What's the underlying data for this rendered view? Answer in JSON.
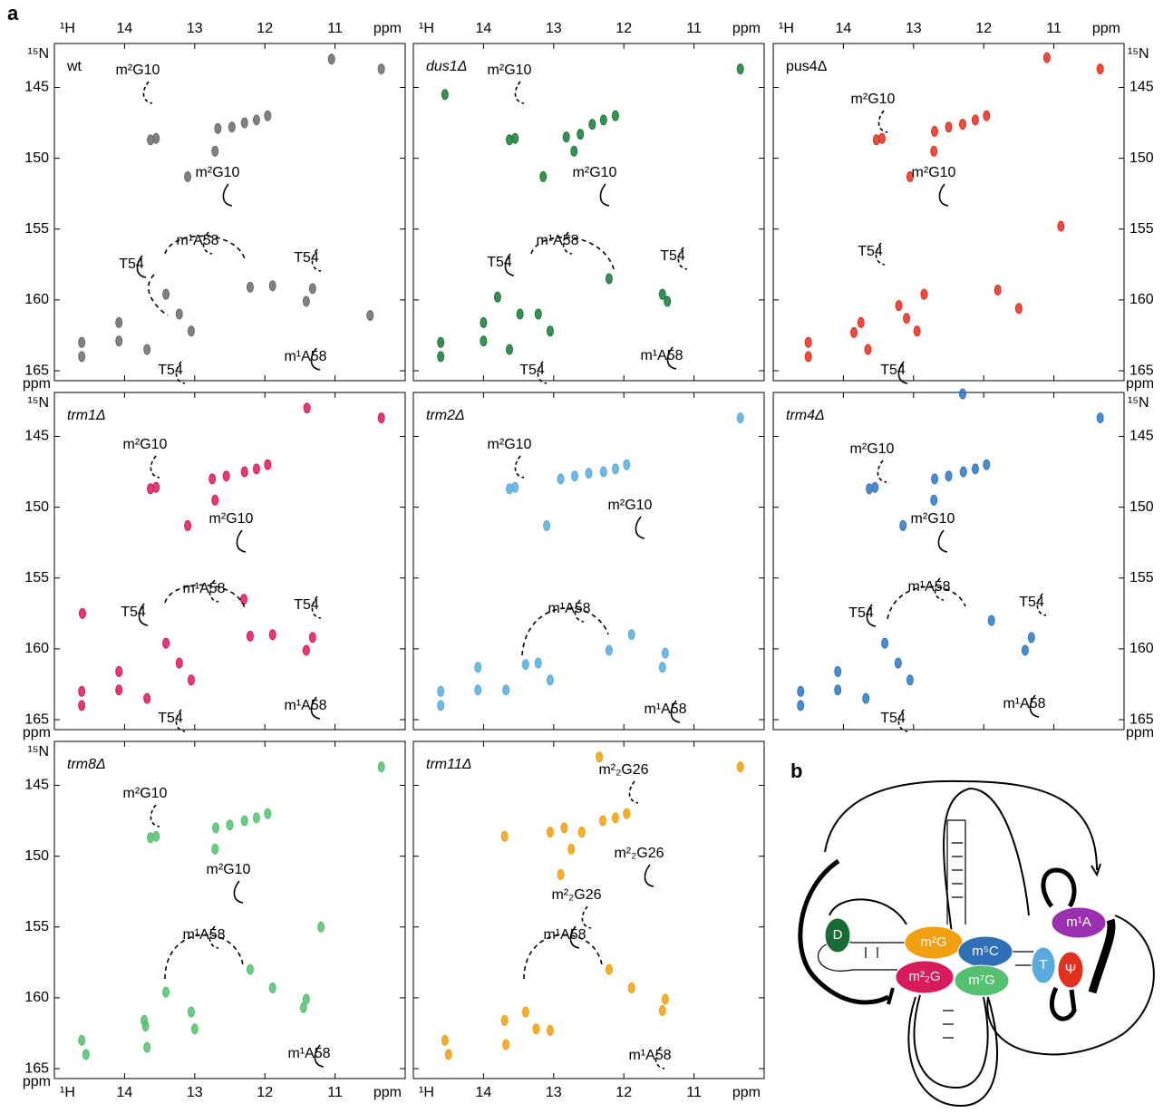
{
  "figure_labels": {
    "a": "a",
    "b": "b"
  },
  "spectra": {
    "type": "scatter",
    "x_label": "¹H",
    "y_label": "¹⁵N",
    "unit": "ppm",
    "xlim": [
      15.0,
      10.0
    ],
    "xticks": [
      14,
      13,
      12,
      11
    ],
    "ylim": [
      141.9,
      165.7
    ],
    "yticks": [
      145,
      150,
      155,
      160,
      165
    ],
    "panels": [
      {
        "name": "wt",
        "italic": false,
        "color": "#6b6b6b",
        "annotations": [
          "m²G10",
          "m²G10",
          "m¹A58",
          "T54",
          "T54",
          "m¹A58",
          "T54"
        ],
        "x": [
          10.34,
          11.05,
          13.55,
          13.63,
          12.67,
          12.47,
          12.29,
          12.12,
          11.96,
          12.71,
          13.1,
          12.21,
          11.89,
          13.41,
          11.41,
          11.32,
          14.08,
          13.22,
          13.05,
          14.08,
          14.61,
          14.61,
          13.68,
          10.5
        ],
        "y": [
          143.7,
          143.0,
          148.6,
          148.7,
          147.9,
          147.8,
          147.5,
          147.3,
          147.0,
          149.5,
          151.3,
          159.1,
          159.0,
          159.6,
          160.1,
          159.2,
          161.6,
          161.0,
          162.2,
          162.9,
          163.0,
          164.0,
          163.5,
          161.1
        ]
      },
      {
        "name": "dus1Δ",
        "italic": true,
        "color": "#1a7a3a",
        "annotations": [
          "m²G10",
          "m²G10",
          "m¹A58",
          "T54",
          "T54",
          "m¹A58",
          "T54"
        ],
        "x": [
          10.34,
          14.55,
          13.55,
          13.63,
          12.82,
          12.62,
          12.45,
          12.29,
          12.12,
          12.71,
          13.15,
          12.21,
          11.45,
          13.48,
          11.38,
          13.8,
          14.0,
          13.22,
          13.05,
          14.0,
          14.61,
          14.61,
          13.63
        ],
        "y": [
          143.7,
          145.5,
          148.6,
          148.7,
          148.5,
          148.3,
          147.6,
          147.3,
          147.0,
          149.5,
          151.3,
          158.5,
          159.6,
          161.0,
          160.1,
          159.8,
          161.6,
          161.0,
          162.2,
          162.9,
          163.0,
          164.0,
          163.5
        ]
      },
      {
        "name": "pus4Δ",
        "italic": false,
        "color": "#e03020",
        "annotations": [
          "m²G10",
          "m²G10",
          "T54",
          "T54"
        ],
        "x": [
          10.34,
          11.1,
          13.45,
          13.53,
          12.7,
          12.5,
          12.3,
          12.12,
          11.96,
          12.71,
          13.05,
          12.85,
          11.8,
          13.21,
          11.5,
          13.75,
          13.1,
          12.95,
          13.85,
          14.5,
          14.5,
          13.65,
          10.9
        ],
        "y": [
          143.7,
          142.9,
          148.6,
          148.7,
          148.1,
          147.8,
          147.6,
          147.3,
          147.0,
          149.5,
          151.3,
          159.6,
          159.3,
          160.4,
          160.6,
          161.6,
          161.3,
          162.2,
          162.3,
          163.0,
          164.0,
          163.5,
          154.8
        ]
      },
      {
        "name": "trm1Δ",
        "italic": true,
        "color": "#d81b5a",
        "annotations": [
          "m²G10",
          "m²G10",
          "m¹A58",
          "T54",
          "T54",
          "m¹A58",
          "T54"
        ],
        "x": [
          10.34,
          11.4,
          13.55,
          13.63,
          12.75,
          12.55,
          12.29,
          12.12,
          11.96,
          12.71,
          13.1,
          12.21,
          11.89,
          13.41,
          11.41,
          11.32,
          14.08,
          13.22,
          13.05,
          14.08,
          14.61,
          14.61,
          13.68,
          14.6,
          12.3
        ],
        "y": [
          143.7,
          143.0,
          148.6,
          148.7,
          148.0,
          147.8,
          147.5,
          147.3,
          147.0,
          149.5,
          151.3,
          159.1,
          159.0,
          159.6,
          160.1,
          159.2,
          161.6,
          161.0,
          162.2,
          162.9,
          163.0,
          164.0,
          163.5,
          157.5,
          156.5
        ]
      },
      {
        "name": "trm2Δ",
        "italic": true,
        "color": "#5aabdc",
        "annotations": [
          "m²G10",
          "m²G10",
          "m¹A58",
          "m¹A58"
        ],
        "x": [
          10.34,
          13.55,
          13.63,
          12.9,
          12.7,
          12.5,
          12.29,
          12.12,
          11.96,
          13.1,
          12.21,
          11.89,
          11.41,
          11.45,
          14.08,
          13.4,
          13.22,
          13.05,
          14.08,
          14.61,
          14.61,
          13.68
        ],
        "y": [
          143.7,
          148.6,
          148.7,
          148.0,
          147.8,
          147.6,
          147.5,
          147.3,
          147.0,
          151.3,
          160.1,
          159.0,
          160.3,
          161.3,
          161.3,
          161.1,
          161.0,
          162.2,
          162.9,
          163.0,
          164.0,
          162.9
        ]
      },
      {
        "name": "trm4Δ",
        "italic": true,
        "color": "#2f78c0",
        "annotations": [
          "m²G10",
          "m²G10",
          "m¹A58",
          "T54",
          "T54",
          "m¹A58",
          "T54"
        ],
        "x": [
          10.34,
          13.55,
          13.63,
          12.7,
          12.5,
          12.29,
          12.12,
          11.96,
          12.71,
          13.15,
          11.89,
          11.41,
          11.32,
          13.41,
          14.08,
          13.22,
          13.05,
          14.08,
          14.61,
          14.61,
          13.68,
          12.3
        ],
        "y": [
          143.7,
          148.6,
          148.7,
          148.0,
          147.8,
          147.5,
          147.3,
          147.0,
          149.5,
          151.3,
          158.0,
          160.1,
          159.2,
          159.6,
          161.6,
          161.0,
          162.2,
          162.9,
          163.0,
          164.0,
          163.5,
          142.0
        ]
      },
      {
        "name": "trm8Δ",
        "italic": true,
        "color": "#55c070",
        "annotations": [
          "m²G10",
          "m²G10",
          "m¹A58",
          "m¹A58"
        ],
        "x": [
          10.34,
          13.55,
          13.63,
          12.7,
          12.5,
          12.29,
          12.12,
          11.96,
          12.71,
          13.41,
          12.21,
          11.89,
          11.41,
          11.45,
          13.72,
          13.7,
          13.05,
          13.0,
          14.61,
          14.55,
          13.68,
          11.2
        ],
        "y": [
          143.7,
          148.6,
          148.7,
          148.0,
          147.8,
          147.5,
          147.3,
          147.0,
          149.5,
          159.6,
          158.0,
          159.3,
          160.1,
          160.7,
          161.6,
          162.0,
          161.0,
          162.2,
          163.0,
          164.0,
          163.5,
          155.0
        ]
      },
      {
        "name": "trm11Δ",
        "italic": true,
        "color": "#f0a010",
        "annotations": [
          "m²₂G26",
          "m²₂G26",
          "m²₂G26",
          "m¹A58",
          "m¹A58"
        ],
        "x": [
          10.34,
          12.35,
          13.7,
          13.05,
          12.85,
          12.6,
          12.3,
          12.12,
          11.96,
          12.75,
          12.9,
          12.21,
          11.89,
          11.41,
          11.45,
          13.7,
          13.4,
          13.25,
          13.05,
          14.55,
          14.5,
          13.68
        ],
        "y": [
          143.7,
          143.0,
          148.6,
          148.3,
          148.0,
          148.3,
          147.5,
          147.3,
          147.0,
          149.5,
          151.3,
          158.0,
          159.3,
          160.1,
          160.9,
          161.6,
          161.0,
          162.2,
          162.3,
          163.0,
          164.0,
          163.3
        ]
      }
    ]
  },
  "diagram": {
    "nodes": [
      {
        "label": "D",
        "color": "#1a6b35"
      },
      {
        "label": "m²G",
        "color": "#f0a010"
      },
      {
        "label": "m⁵C",
        "color": "#2f6fb5"
      },
      {
        "label": "m¹A",
        "color": "#9a2fb0"
      },
      {
        "label": "T",
        "color": "#5aabdc"
      },
      {
        "label": "Ψ",
        "color": "#e03020"
      },
      {
        "label": "m²₂G",
        "color": "#d81b5a"
      },
      {
        "label": "m⁷G",
        "color": "#55c070"
      }
    ]
  }
}
